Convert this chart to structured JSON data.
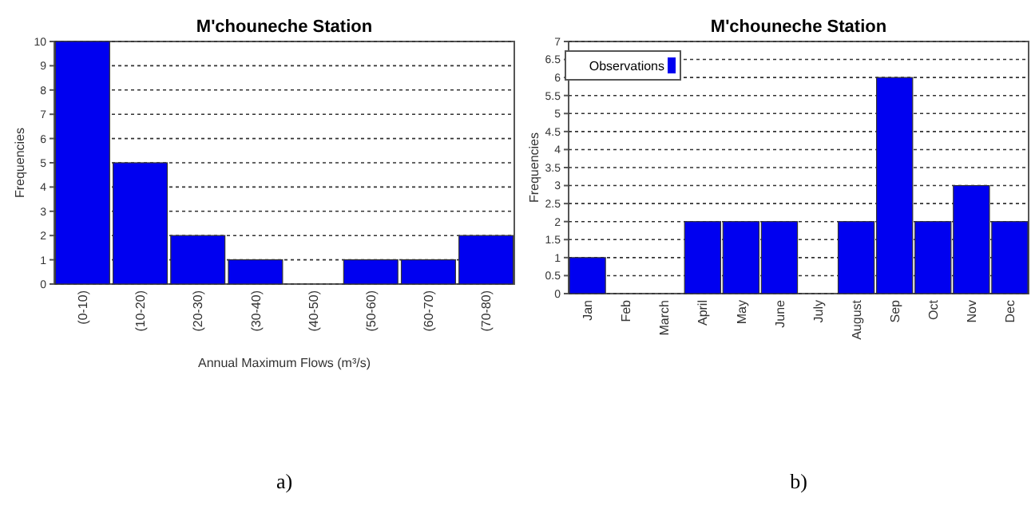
{
  "chart_data": [
    {
      "type": "bar",
      "title": "M'chouneche Station",
      "xlabel": "Annual Maximum Flows  (m³/s)",
      "ylabel": "Frequencies",
      "categories": [
        "(0-10)",
        "(10-20)",
        "(20-30)",
        "(30-40)",
        "(40-50)",
        "(50-60)",
        "(60-70)",
        "(70-80)"
      ],
      "values": [
        10,
        5,
        2,
        1,
        0,
        1,
        1,
        2
      ],
      "color": "#0000f0",
      "ylim": [
        0,
        10
      ],
      "yticks": [
        0,
        1,
        2,
        3,
        4,
        5,
        6,
        7,
        8,
        9,
        10
      ],
      "grid": "y",
      "legend": false,
      "annotations": [
        "a)"
      ]
    },
    {
      "type": "bar",
      "title": "M'chouneche Station",
      "ylabel": "Frequencies",
      "categories": [
        "Jan",
        "Feb",
        "March",
        "April",
        "May",
        "June",
        "July",
        "August",
        "Sep",
        "Oct",
        "Nov",
        "Dec"
      ],
      "series": [
        {
          "name": "Observations",
          "color": "#0000f0",
          "values": [
            1,
            0,
            0,
            2,
            2,
            2,
            0,
            2,
            6,
            2,
            3,
            2
          ]
        }
      ],
      "ylim": [
        0,
        7
      ],
      "yticks": [
        0,
        0.5,
        1,
        1.5,
        2,
        2.5,
        3,
        3.5,
        4,
        4.5,
        5,
        5.5,
        6,
        6.5,
        7
      ],
      "grid": "y",
      "legend": "top left",
      "annotations": [
        "b)"
      ]
    }
  ]
}
